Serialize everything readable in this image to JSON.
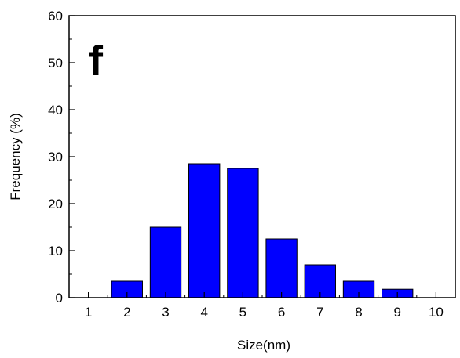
{
  "chart_data": {
    "type": "bar",
    "panel_label": "f",
    "xlabel": "Size(nm)",
    "ylabel": "Frequency (%)",
    "categories": [
      "1",
      "2",
      "3",
      "4",
      "5",
      "6",
      "7",
      "8",
      "9",
      "10"
    ],
    "x": [
      1,
      2,
      3,
      4,
      5,
      6,
      7,
      8,
      9,
      10
    ],
    "values": [
      0,
      3.5,
      15,
      28.5,
      27.5,
      12.5,
      7,
      3.5,
      1.8,
      0
    ],
    "xlim": [
      0.5,
      10.5
    ],
    "ylim": [
      0,
      60
    ],
    "y_ticks": [
      0,
      10,
      20,
      30,
      40,
      50,
      60
    ],
    "y_tick_labels": [
      "0",
      "10",
      "20",
      "30",
      "40",
      "50",
      "60"
    ],
    "bar_color": "#0000ff",
    "bar_edge_color": "#000000",
    "grid": false,
    "legend": "none"
  }
}
